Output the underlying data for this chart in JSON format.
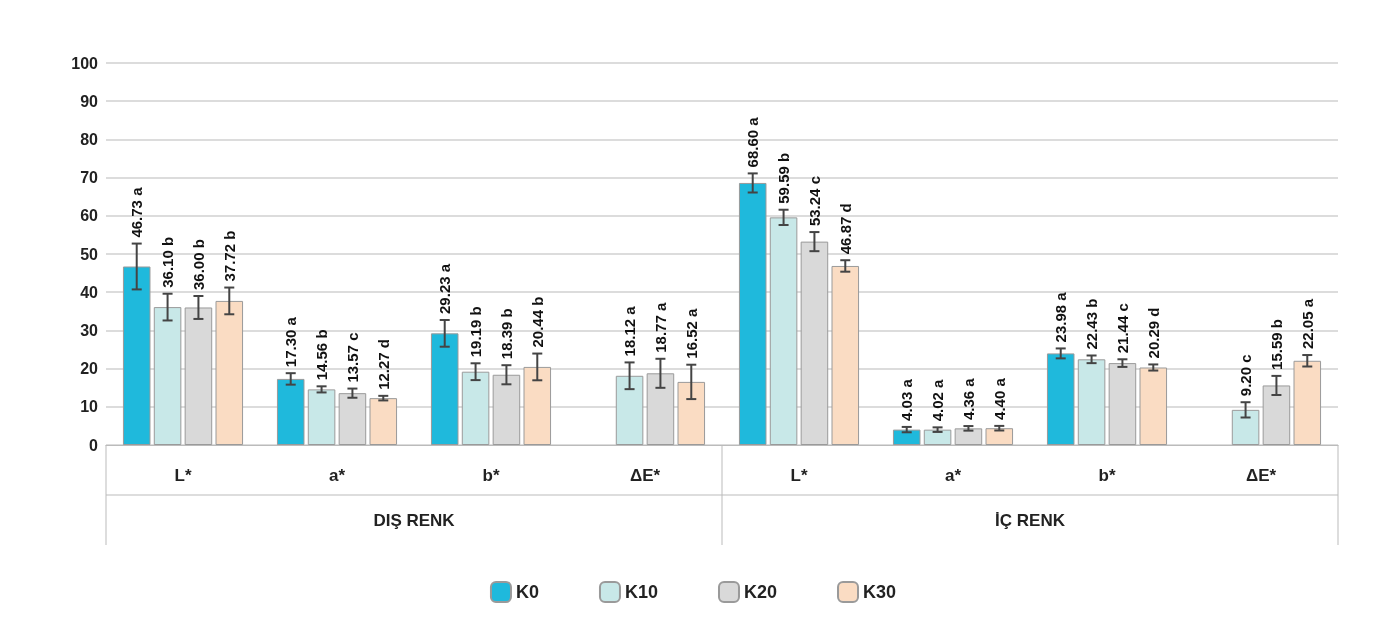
{
  "chart_data": {
    "type": "bar",
    "categories": [
      "L*",
      "a*",
      "b*",
      "ΔE*",
      "L*",
      "a*",
      "b*",
      "ΔE*"
    ],
    "annotations": [
      "DIŞ RENK",
      "İÇ RENK"
    ],
    "series": [
      {
        "name": "K0",
        "color": "#1fb9dc",
        "values": [
          46.73,
          17.3,
          29.23,
          null,
          68.6,
          4.03,
          23.98,
          null
        ],
        "errors": [
          6,
          1.5,
          3.5,
          null,
          2.5,
          0.7,
          1.3,
          null
        ],
        "value_labels": [
          "46.73 a",
          "17.30 a",
          "29.23 a",
          null,
          "68.60 a",
          "4.03 a",
          "23.98 a",
          null
        ]
      },
      {
        "name": "K10",
        "color": "#c8e8e8",
        "values": [
          36.1,
          14.56,
          19.19,
          18.12,
          59.59,
          4.02,
          22.43,
          9.2
        ],
        "errors": [
          3.5,
          0.8,
          2.2,
          3.5,
          2,
          0.6,
          1,
          2
        ],
        "value_labels": [
          "36.10 b",
          "14.56 b",
          "19.19 b",
          "18.12 a",
          "59.59 b",
          "4.02 a",
          "22.43 b",
          "9.20 c"
        ]
      },
      {
        "name": "K20",
        "color": "#d9d9d9",
        "values": [
          36.0,
          13.57,
          18.39,
          18.77,
          53.24,
          4.36,
          21.44,
          15.59
        ],
        "errors": [
          3,
          1.2,
          2.5,
          3.8,
          2.5,
          0.6,
          1,
          2.5
        ],
        "value_labels": [
          "36.00 b",
          "13.57 c",
          "18.39 b",
          "18.77 a",
          "53.24 c",
          "4.36 a",
          "21.44 c",
          "15.59 b"
        ]
      },
      {
        "name": "K30",
        "color": "#fadcc3",
        "values": [
          37.72,
          12.27,
          20.44,
          16.52,
          46.87,
          4.4,
          20.29,
          22.05
        ],
        "errors": [
          3.5,
          0.6,
          3.5,
          4.5,
          1.5,
          0.6,
          0.8,
          1.5
        ],
        "value_labels": [
          "37.72 b",
          "12.27 d",
          "20.44 b",
          "16.52 a",
          "46.87 d",
          "4.40 a",
          "20.29 d",
          "22.05 a"
        ]
      }
    ],
    "ylim": [
      0,
      100
    ],
    "yticks": [
      0,
      10,
      20,
      30,
      40,
      50,
      60,
      70,
      80,
      90,
      100
    ],
    "grid": "y",
    "legend": "bottom"
  }
}
